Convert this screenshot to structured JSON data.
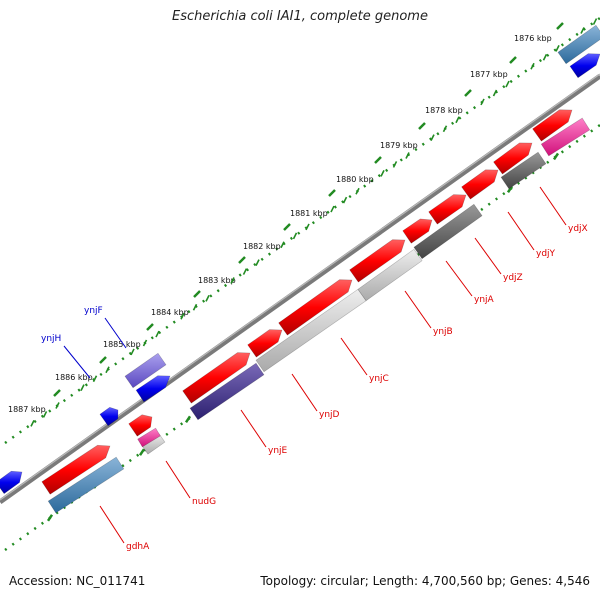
{
  "title": "Escherichia coli IAI1, complete genome",
  "footer": {
    "accession": "Accession: NC_011741",
    "topology": "Topology: circular; Length: 4,700,560 bp; Genes: 4,546"
  },
  "colors": {
    "forward_gene": "#ff0000",
    "forward_gene_blue": "#0000ee",
    "reverse_gray": "#666666",
    "backbone": "#808080",
    "tick": "#228b22",
    "label_red": "#dd0000",
    "label_blue": "#0000cc"
  },
  "ruler": {
    "unit": "kbp",
    "ticks": [
      "1876 kbp",
      "1877 kbp",
      "1878 kbp",
      "1879 kbp",
      "1880 kbp",
      "1881 kbp",
      "1882 kbp",
      "1883 kbp",
      "1884 kbp",
      "1885 kbp",
      "1886 kbp",
      "1887 kbp"
    ]
  },
  "gene_labels": [
    {
      "name": "ydjX",
      "color": "red"
    },
    {
      "name": "ydjY",
      "color": "red"
    },
    {
      "name": "ydjZ",
      "color": "red"
    },
    {
      "name": "ynjA",
      "color": "red"
    },
    {
      "name": "ynjB",
      "color": "red"
    },
    {
      "name": "ynjC",
      "color": "red"
    },
    {
      "name": "ynjD",
      "color": "red"
    },
    {
      "name": "ynjE",
      "color": "red"
    },
    {
      "name": "nudG",
      "color": "red"
    },
    {
      "name": "gdhA",
      "color": "red"
    },
    {
      "name": "ynjF",
      "color": "blue"
    },
    {
      "name": "ynjH",
      "color": "blue"
    }
  ]
}
